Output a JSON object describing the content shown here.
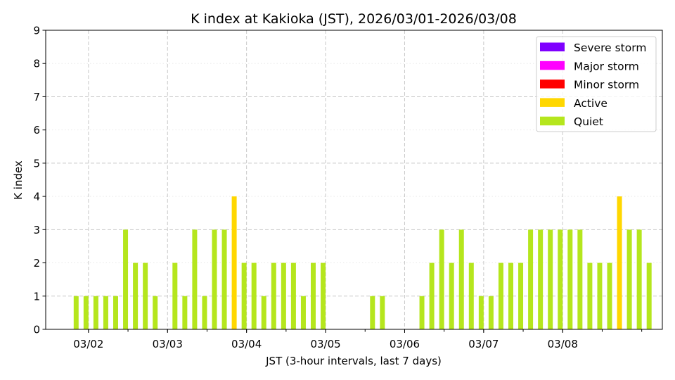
{
  "chart_data": {
    "type": "bar",
    "title": "K index at Kakioka (JST), 2026/03/01-2026/03/08",
    "xlabel": "JST (3-hour intervals, last 7 days)",
    "ylabel": "K index",
    "ylim": [
      0,
      9
    ],
    "yticks": [
      "0",
      "1",
      "2",
      "3",
      "4",
      "5",
      "6",
      "7",
      "8",
      "9"
    ],
    "xticks": [
      {
        "slot": 1.25,
        "label": "03/02"
      },
      {
        "slot": 9.25,
        "label": "03/03"
      },
      {
        "slot": 17.25,
        "label": "03/04"
      },
      {
        "slot": 25.25,
        "label": "03/05"
      },
      {
        "slot": 33.25,
        "label": "03/06"
      },
      {
        "slot": 41.25,
        "label": "03/07"
      },
      {
        "slot": 49.25,
        "label": "03/08"
      }
    ],
    "interval_hours": 3,
    "values": [
      1,
      1,
      1,
      1,
      1,
      3,
      2,
      2,
      1,
      0,
      2,
      1,
      3,
      1,
      3,
      3,
      4,
      2,
      2,
      1,
      2,
      2,
      2,
      1,
      2,
      2,
      0,
      0,
      0,
      0,
      1,
      1,
      0,
      0,
      0,
      1,
      2,
      3,
      2,
      3,
      2,
      1,
      1,
      2,
      2,
      2,
      3,
      3,
      3,
      3,
      3,
      3,
      2,
      2,
      2,
      4,
      3,
      3,
      2
    ],
    "grid": true,
    "legend_position": "top-right",
    "levels": [
      {
        "name": "Severe storm",
        "color": "#7f00ff"
      },
      {
        "name": "Major storm",
        "color": "#ff00ff"
      },
      {
        "name": "Minor storm",
        "color": "#ff0000"
      },
      {
        "name": "Active",
        "color": "#ffd700"
      },
      {
        "name": "Quiet",
        "color": "#b5e61d"
      }
    ]
  }
}
